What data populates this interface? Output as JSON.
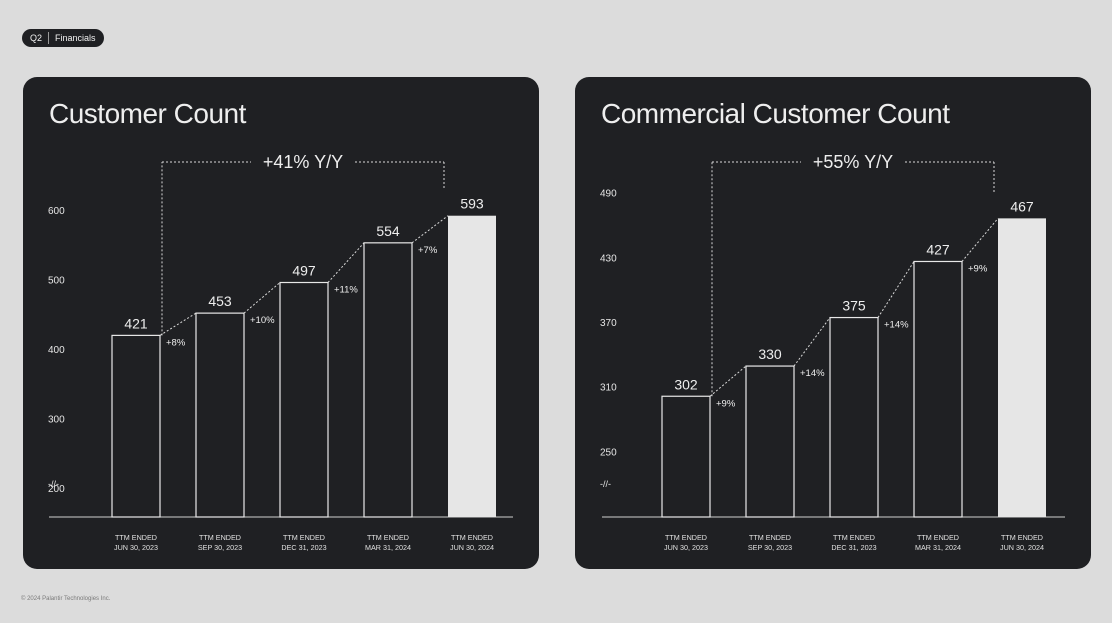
{
  "tag": {
    "section": "Q2",
    "label": "Financials"
  },
  "footer": "© 2024 Palantir Technologies Inc.",
  "colors": {
    "background": "#dcdcdc",
    "panel": "#1f2023",
    "bar_outline": "#e8e8e8",
    "highlight_bar": "#e6e6e6",
    "text": "#eeeeee"
  },
  "chart_data": [
    {
      "type": "bar",
      "title": "Customer Count",
      "categories": [
        "TTM ENDED JUN 30, 2023",
        "TTM ENDED SEP 30, 2023",
        "TTM ENDED DEC 31, 2023",
        "TTM ENDED MAR 31, 2024",
        "TTM ENDED JUN 30, 2024"
      ],
      "values": [
        421,
        453,
        497,
        554,
        593
      ],
      "growth_labels": [
        "+8%",
        "+10%",
        "+11%",
        "+7%"
      ],
      "total_growth_label": "+41% Y/Y",
      "yticks": [
        200,
        300,
        400,
        500,
        600
      ],
      "ylim": [
        160,
        640
      ],
      "axis_break_label": "-//-",
      "highlight_last": true
    },
    {
      "type": "bar",
      "title": "Commercial Customer Count",
      "categories": [
        "TTM ENDED JUN 30, 2023",
        "TTM ENDED SEP 30, 2023",
        "TTM ENDED DEC 31, 2023",
        "TTM ENDED MAR 31, 2024",
        "TTM ENDED JUN 30, 2024"
      ],
      "values": [
        302,
        330,
        375,
        427,
        467
      ],
      "growth_labels": [
        "+9%",
        "+14%",
        "+14%",
        "+9%"
      ],
      "total_growth_label": "+55% Y/Y",
      "yticks": [
        250,
        310,
        370,
        430,
        490
      ],
      "ylim": [
        190,
        510
      ],
      "axis_break_label": "-//-",
      "highlight_last": true
    }
  ]
}
